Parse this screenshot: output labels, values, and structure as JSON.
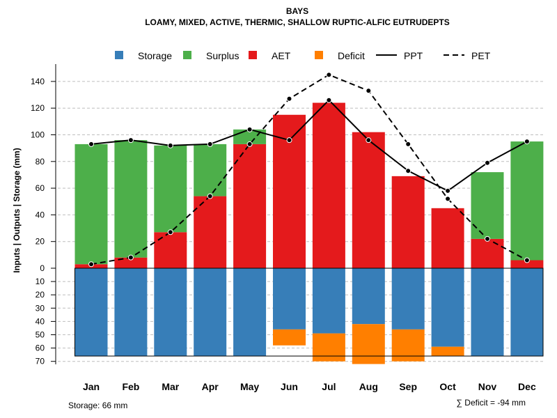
{
  "chart_data": {
    "type": "bar",
    "title": "BAYS",
    "subtitle": "LOAMY, MIXED, ACTIVE, THERMIC, SHALLOW RUPTIC-ALFIC EUTRUDEPTS",
    "ylabel": "Inputs | Outputs | Storage    (mm)",
    "categories": [
      "Jan",
      "Feb",
      "Mar",
      "Apr",
      "May",
      "Jun",
      "Jul",
      "Aug",
      "Sep",
      "Oct",
      "Nov",
      "Dec"
    ],
    "ylim_upper": [
      0,
      150
    ],
    "ylim_lower": [
      0,
      70
    ],
    "upper_ticks": [
      "0",
      "20",
      "40",
      "60",
      "80",
      "100",
      "120",
      "140"
    ],
    "lower_ticks": [
      "10",
      "20",
      "30",
      "40",
      "50",
      "60",
      "70"
    ],
    "colors": {
      "storage": "#377EB8",
      "surplus": "#4DAF4A",
      "aet": "#E41A1C",
      "deficit": "#FF7F00",
      "grid": "#bebebe"
    },
    "legend": [
      {
        "key": "storage",
        "label": "Storage",
        "kind": "square"
      },
      {
        "key": "surplus",
        "label": "Surplus",
        "kind": "square"
      },
      {
        "key": "aet",
        "label": "AET",
        "kind": "square"
      },
      {
        "key": "deficit",
        "label": "Deficit",
        "kind": "square"
      },
      {
        "key": "ppt",
        "label": "PPT",
        "kind": "solid"
      },
      {
        "key": "pet",
        "label": "PET",
        "kind": "dashed"
      }
    ],
    "series": [
      {
        "name": "AET",
        "values": [
          3,
          8,
          27,
          54,
          93,
          115,
          124,
          102,
          69,
          45,
          22,
          6
        ]
      },
      {
        "name": "Surplus",
        "values": [
          90,
          88,
          65,
          39,
          11,
          0,
          0,
          0,
          0,
          0,
          50,
          89
        ]
      },
      {
        "name": "PPT",
        "values": [
          93,
          96,
          92,
          93,
          104,
          96,
          126,
          96,
          73,
          58,
          79,
          95
        ]
      },
      {
        "name": "PET",
        "values": [
          3,
          8,
          27,
          54,
          93,
          127,
          145,
          133,
          93,
          52,
          22,
          6
        ]
      },
      {
        "name": "Storage",
        "values": [
          66,
          66,
          66,
          66,
          66,
          46,
          49,
          42,
          46,
          59,
          66,
          66
        ]
      },
      {
        "name": "Deficit",
        "values": [
          0,
          0,
          0,
          0,
          0,
          12,
          21,
          30,
          24,
          7,
          0,
          0
        ]
      }
    ],
    "storage_capacity": 66
  },
  "footer": {
    "storage_note": "Storage: 66 mm",
    "deficit_note": "∑ Deficit = -94 mm"
  }
}
